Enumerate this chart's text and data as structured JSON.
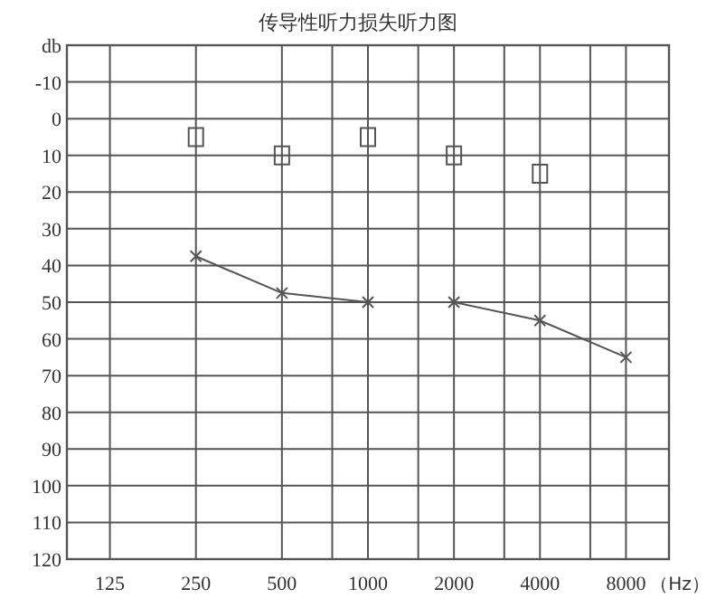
{
  "chart_data": {
    "type": "line",
    "title": "传导性听力损失听力图",
    "xlabel": "（Hz）",
    "log": "x",
    "grid": true,
    "xlim": [
      88.39,
      11314
    ],
    "xticks": [
      125,
      250,
      500,
      {
        "value": 750,
        "label": null
      },
      1000,
      {
        "value": 1500,
        "label": null
      },
      2000,
      {
        "value": 3000,
        "label": null
      },
      4000,
      {
        "value": 6000,
        "label": null
      },
      8000
    ],
    "ylim": [
      120,
      -20
    ],
    "yticks": [
      {
        "value": -20,
        "label": "db"
      },
      -10,
      0,
      10,
      20,
      30,
      40,
      50,
      60,
      70,
      80,
      90,
      100,
      110,
      120
    ],
    "series": [
      {
        "type": "line",
        "marker": "cross",
        "line_style": "solid",
        "color": "#555555",
        "x": [
          250,
          500,
          1000,
          2000,
          4000,
          8000
        ],
        "values": [
          37.5,
          47.5,
          50,
          50,
          55,
          65
        ]
      },
      {
        "type": "scatter",
        "marker": "square",
        "color": "#555555",
        "x": [
          250,
          500,
          1000,
          2000,
          4000
        ],
        "values": [
          5,
          10,
          5,
          10,
          15
        ]
      }
    ]
  }
}
